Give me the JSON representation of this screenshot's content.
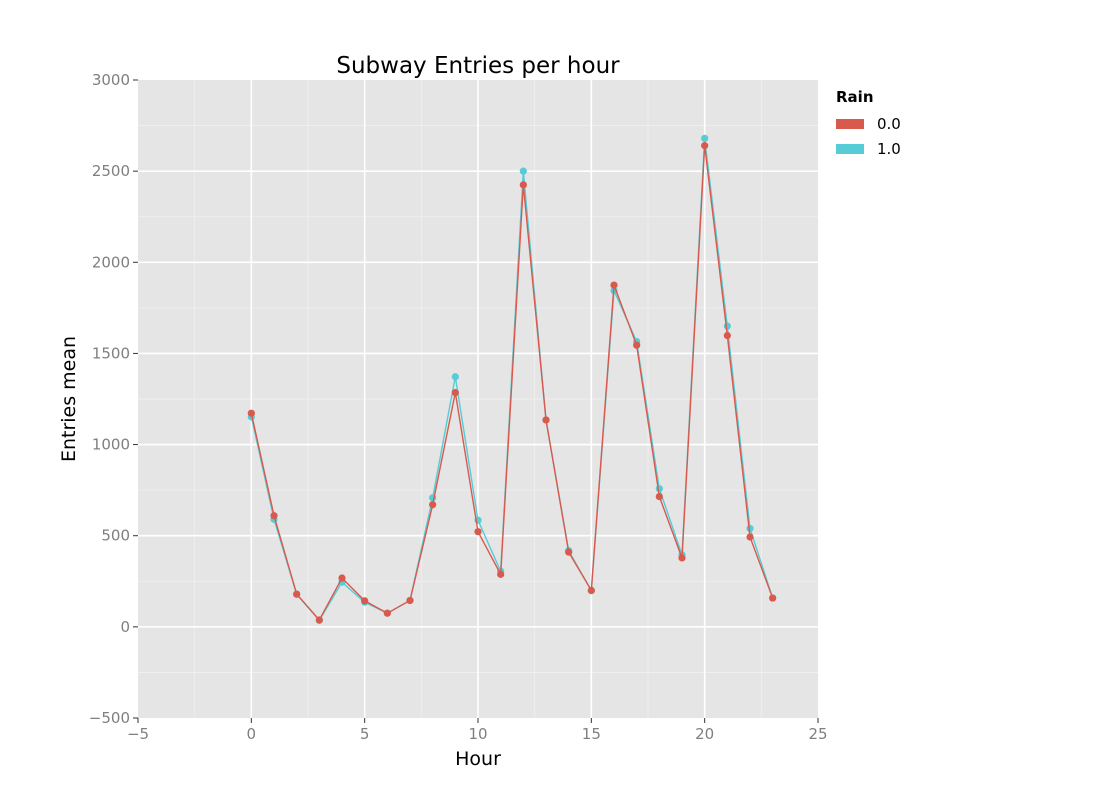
{
  "chart_data": {
    "type": "line",
    "title": "Subway Entries per hour",
    "xlabel": "Hour",
    "ylabel": "Entries mean",
    "xlim": [
      -5,
      25
    ],
    "ylim": [
      -500,
      3000
    ],
    "xticks": [
      -5,
      0,
      5,
      10,
      15,
      20,
      25
    ],
    "xtick_labels": [
      "−5",
      "0",
      "5",
      "10",
      "15",
      "20",
      "25"
    ],
    "yticks": [
      -500,
      0,
      500,
      1000,
      1500,
      2000,
      2500,
      3000
    ],
    "ytick_labels": [
      "−500",
      "0",
      "500",
      "1000",
      "1500",
      "2000",
      "2500",
      "3000"
    ],
    "grid": true,
    "legend": {
      "title": "Rain",
      "placement": "right"
    },
    "x": [
      0,
      1,
      2,
      3,
      4,
      5,
      6,
      7,
      8,
      9,
      10,
      11,
      12,
      13,
      14,
      15,
      16,
      17,
      18,
      19,
      20,
      21,
      22,
      23
    ],
    "series": [
      {
        "name": "0.0",
        "color": "#d9594c",
        "values": [
          1172,
          610,
          180,
          38,
          268,
          143,
          75,
          145,
          670,
          1285,
          522,
          288,
          2425,
          1135,
          410,
          200,
          1875,
          1545,
          715,
          378,
          2640,
          1598,
          493,
          158
        ]
      },
      {
        "name": "1.0",
        "color": "#55ccd6",
        "values": [
          1152,
          590,
          178,
          35,
          245,
          135,
          75,
          145,
          708,
          1372,
          585,
          305,
          2500,
          1135,
          418,
          198,
          1845,
          1565,
          758,
          395,
          2680,
          1650,
          540,
          158
        ]
      }
    ]
  }
}
